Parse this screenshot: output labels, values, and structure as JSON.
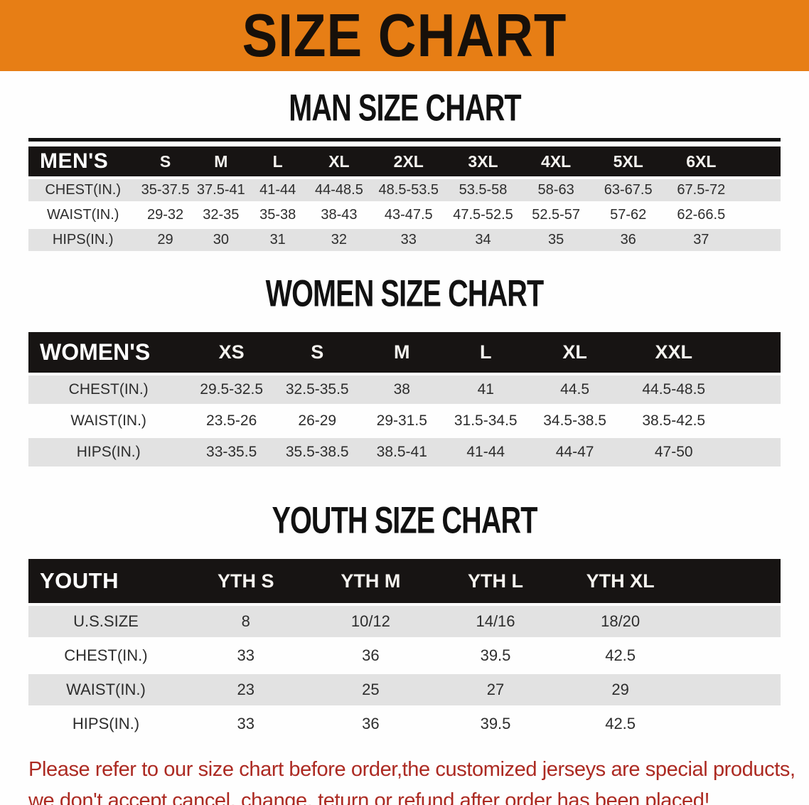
{
  "banner": {
    "title": "SIZE CHART"
  },
  "colors": {
    "banner_bg": "#E77E15",
    "table_header_bg": "#171413",
    "row_stripe": "#E2E2E2",
    "footnote_red": "#AC2A22"
  },
  "sections": [
    {
      "heading": "MAN SIZE CHART",
      "corner_label": "MEN'S",
      "columns": [
        "S",
        "M",
        "L",
        "XL",
        "2XL",
        "3XL",
        "4XL",
        "5XL",
        "6XL"
      ],
      "rows": [
        {
          "label": "CHEST(IN.)",
          "values": [
            "35-37.5",
            "37.5-41",
            "41-44",
            "44-48.5",
            "48.5-53.5",
            "53.5-58",
            "58-63",
            "63-67.5",
            "67.5-72"
          ]
        },
        {
          "label": "WAIST(IN.)",
          "values": [
            "29-32",
            "32-35",
            "35-38",
            "38-43",
            "43-47.5",
            "47.5-52.5",
            "52.5-57",
            "57-62",
            "62-66.5"
          ]
        },
        {
          "label": "HIPS(IN.)",
          "values": [
            "29",
            "30",
            "31",
            "32",
            "33",
            "34",
            "35",
            "36",
            "37"
          ]
        }
      ]
    },
    {
      "heading": "WOMEN SIZE CHART",
      "corner_label": "WOMEN'S",
      "columns": [
        "XS",
        "S",
        "M",
        "L",
        "XL",
        "XXL"
      ],
      "rows": [
        {
          "label": "CHEST(IN.)",
          "values": [
            "29.5-32.5",
            "32.5-35.5",
            "38",
            "41",
            "44.5",
            "44.5-48.5"
          ]
        },
        {
          "label": "WAIST(IN.)",
          "values": [
            "23.5-26",
            "26-29",
            "29-31.5",
            "31.5-34.5",
            "34.5-38.5",
            "38.5-42.5"
          ]
        },
        {
          "label": "HIPS(IN.)",
          "values": [
            "33-35.5",
            "35.5-38.5",
            "38.5-41",
            "41-44",
            "44-47",
            "47-50"
          ]
        }
      ]
    },
    {
      "heading": "YOUTH SIZE CHART",
      "corner_label": "YOUTH",
      "columns": [
        "YTH S",
        "YTH M",
        "YTH L",
        "YTH XL"
      ],
      "rows": [
        {
          "label": "U.S.SIZE",
          "values": [
            "8",
            "10/12",
            "14/16",
            "18/20"
          ]
        },
        {
          "label": "CHEST(IN.)",
          "values": [
            "33",
            "36",
            "39.5",
            "42.5"
          ]
        },
        {
          "label": "WAIST(IN.)",
          "values": [
            "23",
            "25",
            "27",
            "29"
          ]
        },
        {
          "label": "HIPS(IN.)",
          "values": [
            "33",
            "36",
            "39.5",
            "42.5"
          ]
        }
      ]
    }
  ],
  "footnote": {
    "line1": "Please refer to our size chart before order,the customized jerseys are special products,",
    "line2": "we don't accept cancel, change, teturn or refund after order has been placed!"
  }
}
